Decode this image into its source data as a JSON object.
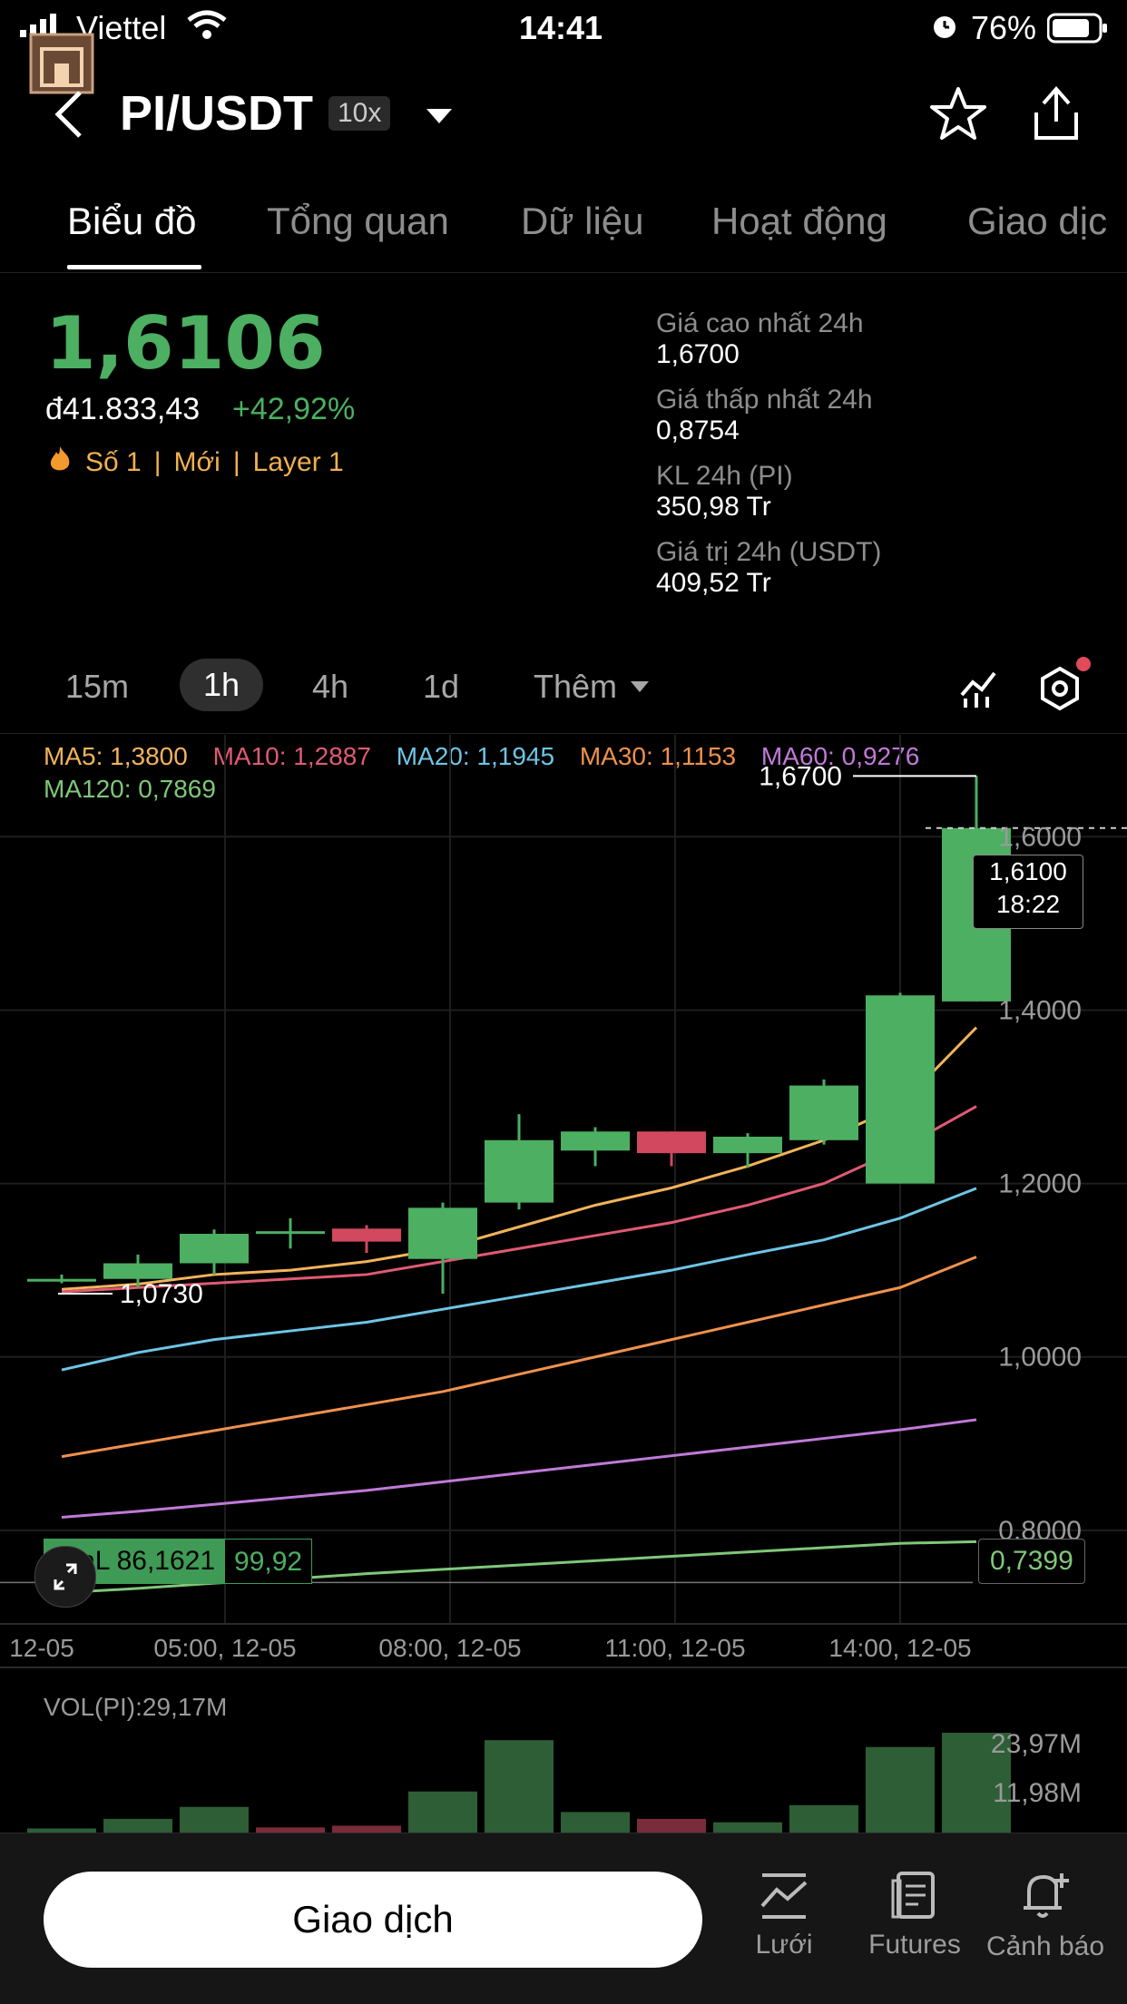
{
  "status_bar": {
    "carrier": "Viettel",
    "time": "14:41",
    "battery": "76%"
  },
  "header": {
    "pair": "PI/USDT",
    "leverage": "10x"
  },
  "tabs": [
    "Biểu đồ",
    "Tổng quan",
    "Dữ liệu",
    "Hoạt động",
    "Giao dịc"
  ],
  "ticker": {
    "price": "1,6106",
    "fiat_price": "đ41.833,43",
    "change": "+42,92%",
    "tags": [
      "Số 1",
      "Mới",
      "Layer 1"
    ],
    "stats": [
      {
        "label": "Giá cao nhất 24h",
        "value": "1,6700"
      },
      {
        "label": "Giá thấp nhất 24h",
        "value": "0,8754"
      },
      {
        "label": "KL 24h (PI)",
        "value": "350,98 Tr"
      },
      {
        "label": "Giá trị 24h (USDT)",
        "value": "409,52 Tr"
      }
    ]
  },
  "intervals": {
    "items": [
      "15m",
      "1h",
      "4h",
      "1d"
    ],
    "selected": "1h",
    "more": "Thêm"
  },
  "ma_legend": [
    {
      "label": "MA5:",
      "value": "1,3800",
      "color": "#f2b35a"
    },
    {
      "label": "MA10:",
      "value": "1,2887",
      "color": "#e05a73"
    },
    {
      "label": "MA20:",
      "value": "1,1945",
      "color": "#6ec5e6"
    },
    {
      "label": "MA30:",
      "value": "1,1153",
      "color": "#f0914d"
    },
    {
      "label": "MA60:",
      "value": "0,9276",
      "color": "#c07ad8"
    },
    {
      "label": "MA120:",
      "value": "0,7869",
      "color": "#7fc77a"
    }
  ],
  "chart_data": {
    "type": "candlestick",
    "x_labels": [
      "12-05",
      "05:00, 12-05",
      "08:00, 12-05",
      "11:00, 12-05",
      "14:00, 12-05"
    ],
    "y_ticks": [
      "1,6000",
      "1,4000",
      "1,2000",
      "1,0000",
      "0,8000"
    ],
    "y_range": [
      0.6921,
      1.7175
    ],
    "candles": [
      {
        "o": 1.088,
        "h": 1.095,
        "l": 1.085,
        "c": 1.09
      },
      {
        "o": 1.09,
        "h": 1.118,
        "l": 1.08,
        "c": 1.108
      },
      {
        "o": 1.108,
        "h": 1.147,
        "l": 1.095,
        "c": 1.142
      },
      {
        "o": 1.145,
        "h": 1.16,
        "l": 1.125,
        "c": 1.145
      },
      {
        "o": 1.148,
        "h": 1.152,
        "l": 1.12,
        "c": 1.133
      },
      {
        "o": 1.113,
        "h": 1.178,
        "l": 1.073,
        "c": 1.172
      },
      {
        "o": 1.178,
        "h": 1.28,
        "l": 1.17,
        "c": 1.25
      },
      {
        "o": 1.238,
        "h": 1.265,
        "l": 1.22,
        "c": 1.26
      },
      {
        "o": 1.26,
        "h": 1.26,
        "l": 1.22,
        "c": 1.235
      },
      {
        "o": 1.235,
        "h": 1.258,
        "l": 1.218,
        "c": 1.254
      },
      {
        "o": 1.25,
        "h": 1.32,
        "l": 1.245,
        "c": 1.313
      },
      {
        "o": 1.2,
        "h": 1.42,
        "l": 1.2,
        "c": 1.417
      },
      {
        "o": 1.41,
        "h": 1.67,
        "l": 1.41,
        "c": 1.61
      }
    ],
    "ma": [
      {
        "name": "MA5",
        "color": "#f2b35a",
        "values": [
          1.078,
          1.084,
          1.095,
          1.1,
          1.11,
          1.125,
          1.15,
          1.175,
          1.195,
          1.22,
          1.25,
          1.29,
          1.38
        ]
      },
      {
        "name": "MA10",
        "color": "#e05a73",
        "values": [
          1.075,
          1.08,
          1.085,
          1.09,
          1.095,
          1.11,
          1.125,
          1.14,
          1.155,
          1.175,
          1.2,
          1.24,
          1.289
        ]
      },
      {
        "name": "MA20",
        "color": "#6ec5e6",
        "values": [
          0.985,
          1.005,
          1.02,
          1.03,
          1.04,
          1.055,
          1.07,
          1.085,
          1.1,
          1.118,
          1.135,
          1.16,
          1.1945
        ]
      },
      {
        "name": "MA30",
        "color": "#f0914d",
        "values": [
          0.885,
          0.9,
          0.915,
          0.93,
          0.945,
          0.96,
          0.98,
          1.0,
          1.02,
          1.04,
          1.06,
          1.08,
          1.1153
        ]
      },
      {
        "name": "MA60",
        "color": "#c07ad8",
        "values": [
          0.815,
          0.822,
          0.83,
          0.838,
          0.846,
          0.856,
          0.866,
          0.876,
          0.886,
          0.896,
          0.906,
          0.916,
          0.9276
        ]
      },
      {
        "name": "MA120",
        "color": "#7fc77a",
        "values": [
          0.728,
          0.733,
          0.739,
          0.744,
          0.75,
          0.755,
          0.76,
          0.765,
          0.77,
          0.775,
          0.78,
          0.785,
          0.7869
        ]
      }
    ],
    "high_marker": "1,6700",
    "low_marker": "1,0730",
    "last_price_label": "1,6100",
    "countdown": "18:22",
    "pnl_label": "PnL 86,1621",
    "pnl_value": "99,92",
    "position_price": "0,7399",
    "volume": {
      "title": "VOL(PI):29,17M",
      "y_ticks": [
        "23,97M",
        "11,98M"
      ],
      "values": [
        1.2,
        4.0,
        7.5,
        1.5,
        2.0,
        12.0,
        27.0,
        6.0,
        4.0,
        3.0,
        8.0,
        25.0,
        29.17
      ],
      "up": [
        true,
        true,
        true,
        false,
        false,
        true,
        true,
        true,
        false,
        true,
        true,
        true,
        true
      ]
    }
  },
  "bottom_bar": {
    "trade_label": "Giao dịch",
    "items": [
      "Lưới",
      "Futures",
      "Cảnh báo"
    ]
  }
}
